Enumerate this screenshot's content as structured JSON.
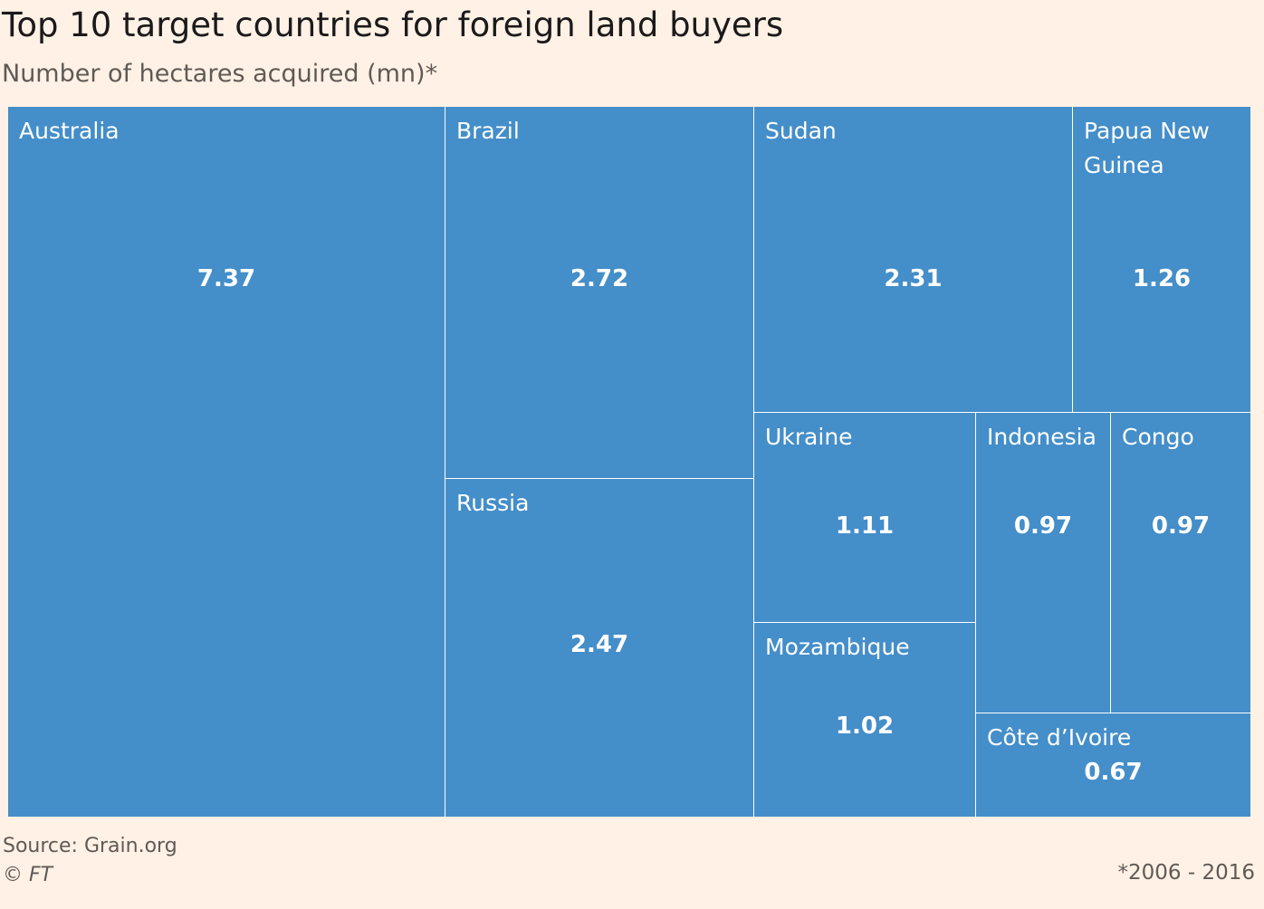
{
  "chart_data": {
    "type": "treemap",
    "title": "Top 10 target countries for foreign land buyers",
    "subtitle": "Number of hectares acquired (mn)*",
    "categories": [
      "Australia",
      "Brazil",
      "Russia",
      "Sudan",
      "Papua New Guinea",
      "Ukraine",
      "Mozambique",
      "Indonesia",
      "Congo",
      "Côte d’Ivoire"
    ],
    "values": [
      "7.37",
      "2.72",
      "2.47",
      "2.31",
      "1.26",
      "1.11",
      "1.02",
      "0.97",
      "0.97",
      "0.67"
    ],
    "color": "#448ec9"
  },
  "footer": {
    "source": "Source: Grain.org",
    "credit": "© FT",
    "note": "*2006 - 2016"
  }
}
